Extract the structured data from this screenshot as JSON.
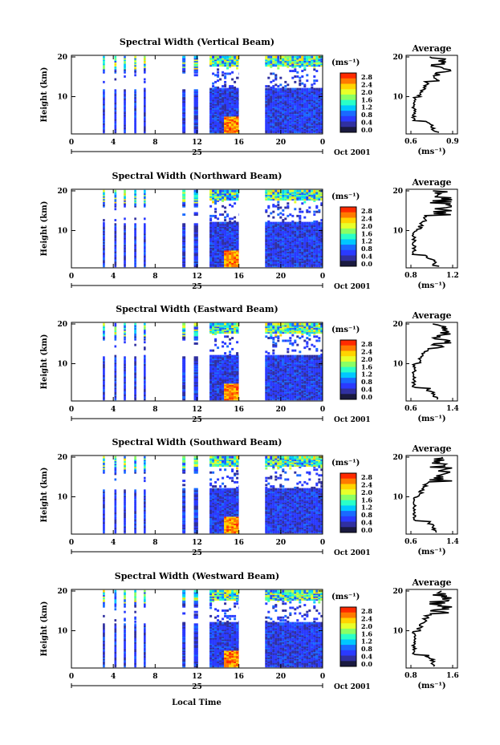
{
  "figure": {
    "x_axis_label": "Local Time",
    "date_label": "Oct 2001",
    "day_label": "25",
    "colorbar_unit": "(ms⁻¹)",
    "colorbar_ticks": [
      "2.8",
      "2.4",
      "2.0",
      "1.6",
      "1.2",
      "0.8",
      "0.4",
      "0.0"
    ],
    "colorbar_colors": [
      "#ff2a00",
      "#ff7a00",
      "#ffd400",
      "#e8ff2a",
      "#8aff64",
      "#2affc8",
      "#00c8ff",
      "#1a6aff",
      "#2a3aff",
      "#3030a0",
      "#1a1a40"
    ],
    "x_ticks": [
      "0",
      "4",
      "8",
      "12",
      "16",
      "20",
      "0"
    ],
    "y_ticks": [
      "20",
      "10"
    ],
    "y_axis_label": "Height (km)",
    "average_title": "Average",
    "average_unit": "(ms⁻¹)"
  },
  "chart_data": [
    {
      "type": "heatmap",
      "title": "Spectral Width (Vertical Beam)",
      "xlabel": "",
      "ylabel": "Height (km)",
      "xlim": [
        0,
        24
      ],
      "ylim": [
        0,
        20
      ],
      "colorbar": {
        "label": "(ms⁻¹)",
        "range": [
          0.0,
          2.8
        ]
      },
      "average_profile": {
        "title": "Average",
        "xlabel": "(ms⁻¹)",
        "xlim": [
          0.6,
          0.9
        ],
        "xtick_labels": [
          "0.6",
          "0.9"
        ]
      }
    },
    {
      "type": "heatmap",
      "title": "Spectral Width (Northward Beam)",
      "xlabel": "",
      "ylabel": "Height (km)",
      "xlim": [
        0,
        24
      ],
      "ylim": [
        0,
        20
      ],
      "colorbar": {
        "label": "(ms⁻¹)",
        "range": [
          0.0,
          2.8
        ]
      },
      "average_profile": {
        "title": "Average",
        "xlabel": "(ms⁻¹)",
        "xlim": [
          0.8,
          1.2
        ],
        "xtick_labels": [
          "0.8",
          "1.2"
        ]
      }
    },
    {
      "type": "heatmap",
      "title": "Spectral Width (Eastward Beam)",
      "xlabel": "",
      "ylabel": "Height (km)",
      "xlim": [
        0,
        24
      ],
      "ylim": [
        0,
        20
      ],
      "colorbar": {
        "label": "(ms⁻¹)",
        "range": [
          0.0,
          2.8
        ]
      },
      "average_profile": {
        "title": "Average",
        "xlabel": "(ms⁻¹)",
        "xlim": [
          0.6,
          1.4
        ],
        "xtick_labels": [
          "0.6",
          "1.4"
        ]
      }
    },
    {
      "type": "heatmap",
      "title": "Spectral Width (Southward Beam)",
      "xlabel": "",
      "ylabel": "Height (km)",
      "xlim": [
        0,
        24
      ],
      "ylim": [
        0,
        20
      ],
      "colorbar": {
        "label": "(ms⁻¹)",
        "range": [
          0.0,
          2.8
        ]
      },
      "average_profile": {
        "title": "Average",
        "xlabel": "(ms⁻¹)",
        "xlim": [
          0.6,
          1.4
        ],
        "xtick_labels": [
          "0.6",
          "1.4"
        ]
      }
    },
    {
      "type": "heatmap",
      "title": "Spectral Width (Westward Beam)",
      "xlabel": "Local Time",
      "ylabel": "Height (km)",
      "xlim": [
        0,
        24
      ],
      "ylim": [
        0,
        20
      ],
      "colorbar": {
        "label": "(ms⁻¹)",
        "range": [
          0.0,
          2.8
        ]
      },
      "average_profile": {
        "title": "Average",
        "xlabel": "(ms⁻¹)",
        "xlim": [
          0.8,
          1.6
        ],
        "xtick_labels": [
          "0.8",
          "1.6"
        ]
      }
    }
  ]
}
